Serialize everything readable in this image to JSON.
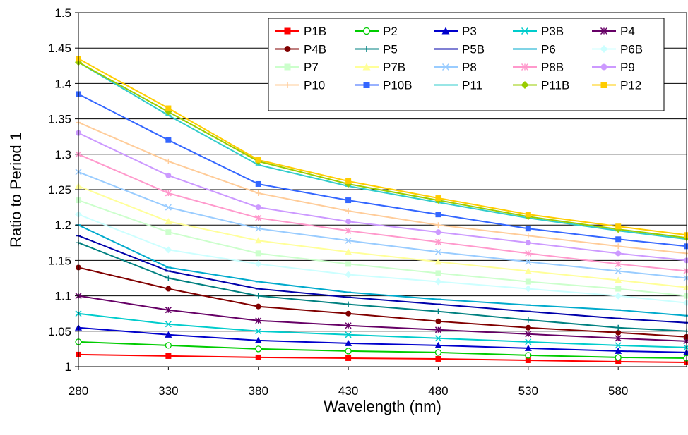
{
  "chart_data": {
    "type": "line",
    "title": "",
    "xlabel": "Wavelength (nm)",
    "ylabel": "Ratio to Period 1",
    "xlim": [
      280,
      618
    ],
    "ylim": [
      1,
      1.5
    ],
    "xticks": [
      280,
      330,
      380,
      430,
      480,
      530,
      580
    ],
    "xtick_labels": [
      "280",
      "330",
      "380",
      "430",
      "480",
      "530",
      "580"
    ],
    "yticks": [
      1,
      1.05,
      1.1,
      1.15,
      1.2,
      1.25,
      1.3,
      1.35,
      1.4,
      1.45,
      1.5
    ],
    "ytick_labels": [
      "1",
      "1.05",
      "1.1",
      "1.15",
      "1.2",
      "1.25",
      "1.3",
      "1.35",
      "1.4",
      "1.45",
      "1.5"
    ],
    "grid": "horizontal",
    "legend_position": "top-right",
    "legend_columns": 5,
    "series": [
      {
        "name": "P1B",
        "color": "#ff0000",
        "marker": "square",
        "x": [
          280,
          330,
          380,
          430,
          480,
          530,
          580,
          618
        ],
        "values": [
          1.017,
          1.015,
          1.013,
          1.012,
          1.011,
          1.009,
          1.007,
          1.006
        ]
      },
      {
        "name": "P2",
        "color": "#00cc00",
        "marker": "circle-open",
        "x": [
          280,
          330,
          380,
          430,
          480,
          530,
          580,
          618
        ],
        "values": [
          1.035,
          1.03,
          1.025,
          1.022,
          1.02,
          1.016,
          1.013,
          1.012
        ]
      },
      {
        "name": "P3",
        "color": "#0000cc",
        "marker": "triangle",
        "x": [
          280,
          330,
          380,
          430,
          480,
          530,
          580,
          618
        ],
        "values": [
          1.055,
          1.045,
          1.037,
          1.033,
          1.03,
          1.026,
          1.022,
          1.02
        ]
      },
      {
        "name": "P3B",
        "color": "#00cccc",
        "marker": "x",
        "x": [
          280,
          330,
          380,
          430,
          480,
          530,
          580,
          618
        ],
        "values": [
          1.075,
          1.06,
          1.05,
          1.045,
          1.04,
          1.035,
          1.03,
          1.027
        ]
      },
      {
        "name": "P4",
        "color": "#660066",
        "marker": "star",
        "x": [
          280,
          330,
          380,
          430,
          480,
          530,
          580,
          618
        ],
        "values": [
          1.1,
          1.08,
          1.065,
          1.058,
          1.052,
          1.046,
          1.04,
          1.036
        ]
      },
      {
        "name": "P4B",
        "color": "#800000",
        "marker": "circle",
        "x": [
          280,
          330,
          380,
          430,
          480,
          530,
          580,
          618
        ],
        "values": [
          1.14,
          1.11,
          1.085,
          1.075,
          1.064,
          1.055,
          1.048,
          1.042
        ]
      },
      {
        "name": "P5",
        "color": "#008080",
        "marker": "plus",
        "x": [
          280,
          330,
          380,
          430,
          480,
          530,
          580,
          618
        ],
        "values": [
          1.175,
          1.125,
          1.1,
          1.088,
          1.078,
          1.066,
          1.055,
          1.05
        ]
      },
      {
        "name": "P5B",
        "color": "#0000aa",
        "marker": "dash",
        "x": [
          280,
          330,
          380,
          430,
          480,
          530,
          580,
          618
        ],
        "values": [
          1.185,
          1.135,
          1.11,
          1.098,
          1.088,
          1.078,
          1.068,
          1.062
        ]
      },
      {
        "name": "P6",
        "color": "#00aacc",
        "marker": "dash",
        "x": [
          280,
          330,
          380,
          430,
          480,
          530,
          580,
          618
        ],
        "values": [
          1.2,
          1.14,
          1.12,
          1.105,
          1.095,
          1.087,
          1.08,
          1.072
        ]
      },
      {
        "name": "P6B",
        "color": "#ccffff",
        "marker": "diamond",
        "x": [
          280,
          330,
          380,
          430,
          480,
          530,
          580,
          618
        ],
        "values": [
          1.215,
          1.165,
          1.145,
          1.13,
          1.12,
          1.11,
          1.1,
          1.09
        ]
      },
      {
        "name": "P7",
        "color": "#ccffcc",
        "marker": "square",
        "x": [
          280,
          330,
          380,
          430,
          480,
          530,
          580,
          618
        ],
        "values": [
          1.235,
          1.19,
          1.16,
          1.145,
          1.132,
          1.12,
          1.11,
          1.1
        ]
      },
      {
        "name": "P7B",
        "color": "#ffff99",
        "marker": "triangle",
        "x": [
          280,
          330,
          380,
          430,
          480,
          530,
          580,
          618
        ],
        "values": [
          1.255,
          1.205,
          1.178,
          1.162,
          1.148,
          1.135,
          1.122,
          1.112
        ]
      },
      {
        "name": "P8",
        "color": "#99ccff",
        "marker": "x",
        "x": [
          280,
          330,
          380,
          430,
          480,
          530,
          580,
          618
        ],
        "values": [
          1.275,
          1.225,
          1.195,
          1.178,
          1.162,
          1.148,
          1.135,
          1.125
        ]
      },
      {
        "name": "P8B",
        "color": "#ff99cc",
        "marker": "star",
        "x": [
          280,
          330,
          380,
          430,
          480,
          530,
          580,
          618
        ],
        "values": [
          1.3,
          1.245,
          1.21,
          1.192,
          1.176,
          1.16,
          1.145,
          1.135
        ]
      },
      {
        "name": "P9",
        "color": "#cc99ff",
        "marker": "circle",
        "x": [
          280,
          330,
          380,
          430,
          480,
          530,
          580,
          618
        ],
        "values": [
          1.33,
          1.27,
          1.225,
          1.205,
          1.19,
          1.175,
          1.16,
          1.15
        ]
      },
      {
        "name": "P10",
        "color": "#ffcc99",
        "marker": "plus",
        "x": [
          280,
          330,
          380,
          430,
          480,
          530,
          580,
          618
        ],
        "values": [
          1.345,
          1.29,
          1.245,
          1.22,
          1.2,
          1.185,
          1.17,
          1.16
        ]
      },
      {
        "name": "P10B",
        "color": "#3366ff",
        "marker": "square",
        "x": [
          280,
          330,
          380,
          430,
          480,
          530,
          580,
          618
        ],
        "values": [
          1.385,
          1.32,
          1.258,
          1.235,
          1.215,
          1.195,
          1.18,
          1.17
        ]
      },
      {
        "name": "P11",
        "color": "#33cccc",
        "marker": "dash",
        "x": [
          280,
          330,
          380,
          430,
          480,
          530,
          580,
          618
        ],
        "values": [
          1.43,
          1.355,
          1.285,
          1.255,
          1.232,
          1.21,
          1.192,
          1.18
        ]
      },
      {
        "name": "P11B",
        "color": "#99cc00",
        "marker": "diamond",
        "x": [
          280,
          330,
          380,
          430,
          480,
          530,
          580,
          618
        ],
        "values": [
          1.43,
          1.36,
          1.29,
          1.258,
          1.235,
          1.212,
          1.194,
          1.182
        ]
      },
      {
        "name": "P12",
        "color": "#ffcc00",
        "marker": "square",
        "x": [
          280,
          330,
          380,
          430,
          480,
          530,
          580,
          618
        ],
        "values": [
          1.435,
          1.365,
          1.292,
          1.262,
          1.238,
          1.215,
          1.198,
          1.186
        ]
      }
    ]
  }
}
